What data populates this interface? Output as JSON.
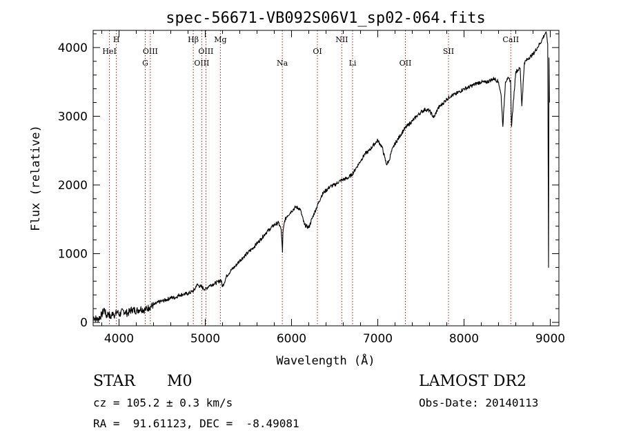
{
  "chart_data": {
    "type": "line",
    "title": "spec-56671-VB092S06V1_sp02-064.fits",
    "xlabel": "Wavelength (Å)",
    "ylabel": "Flux (relative)",
    "xlim": [
      3700,
      9100
    ],
    "ylim": [
      -50,
      4250
    ],
    "x_ticks": [
      4000,
      5000,
      6000,
      7000,
      8000,
      9000
    ],
    "y_ticks": [
      0,
      1000,
      2000,
      3000,
      4000
    ],
    "grid": false,
    "series": [
      {
        "x": [
          3700,
          3750,
          3800,
          3830,
          3850,
          3880,
          3900,
          3930,
          3950,
          3980,
          4000,
          4050,
          4100,
          4150,
          4200,
          4250,
          4300,
          4350,
          4400,
          4450,
          4500,
          4550,
          4600,
          4650,
          4700,
          4750,
          4800,
          4850,
          4880,
          4900,
          4950,
          5000,
          5050,
          5100,
          5150,
          5180,
          5200,
          5250,
          5300,
          5350,
          5400,
          5450,
          5500,
          5550,
          5600,
          5650,
          5700,
          5750,
          5800,
          5850,
          5880,
          5895,
          5900,
          5920,
          5950,
          6000,
          6050,
          6100,
          6150,
          6200,
          6250,
          6300,
          6350,
          6380,
          6400,
          6450,
          6500,
          6550,
          6600,
          6650,
          6700,
          6750,
          6800,
          6850,
          6900,
          6950,
          7000,
          7050,
          7080,
          7100,
          7130,
          7150,
          7180,
          7200,
          7250,
          7300,
          7350,
          7400,
          7450,
          7500,
          7550,
          7600,
          7650,
          7700,
          7750,
          7800,
          7850,
          7900,
          7950,
          8000,
          8050,
          8100,
          8150,
          8200,
          8250,
          8300,
          8350,
          8400,
          8430,
          8450,
          8480,
          8500,
          8540,
          8550,
          8600,
          8650,
          8660,
          8670,
          8700,
          8750,
          8800,
          8850,
          8900,
          8930,
          8950,
          8970,
          8980,
          8985,
          8990
        ],
        "values": [
          80,
          40,
          110,
          200,
          90,
          140,
          60,
          150,
          100,
          160,
          110,
          170,
          130,
          190,
          170,
          200,
          180,
          220,
          250,
          290,
          310,
          330,
          360,
          360,
          400,
          410,
          420,
          450,
          480,
          550,
          520,
          480,
          540,
          560,
          590,
          620,
          520,
          680,
          760,
          820,
          900,
          960,
          1020,
          1080,
          1150,
          1220,
          1300,
          1360,
          1420,
          1450,
          1350,
          1020,
          1300,
          1480,
          1550,
          1620,
          1680,
          1650,
          1420,
          1380,
          1550,
          1700,
          1850,
          1900,
          1920,
          1980,
          2000,
          2050,
          2080,
          2100,
          2150,
          2250,
          2350,
          2450,
          2500,
          2580,
          2650,
          2550,
          2400,
          2300,
          2350,
          2450,
          2550,
          2600,
          2700,
          2800,
          2870,
          2930,
          3000,
          3060,
          3100,
          3080,
          2980,
          3120,
          3180,
          3250,
          3300,
          3320,
          3360,
          3400,
          3420,
          3450,
          3480,
          3500,
          3490,
          3520,
          3550,
          3500,
          3300,
          2850,
          3500,
          3550,
          3520,
          2850,
          3650,
          3700,
          3450,
          3150,
          3780,
          3850,
          3900,
          4000,
          4100,
          4180,
          4230,
          4050,
          800,
          3850,
          3200
        ]
      }
    ],
    "annotations": [
      {
        "label": "HeI",
        "x": 3889
      },
      {
        "label": "H",
        "x": 3969
      },
      {
        "label": "OIII",
        "x": 4363
      },
      {
        "label": "G",
        "x": 4304
      },
      {
        "label": "Hβ",
        "x": 4861
      },
      {
        "label": "OIII",
        "x": 4959
      },
      {
        "label": "OIII",
        "x": 5007
      },
      {
        "label": "Mg",
        "x": 5175
      },
      {
        "label": "Na",
        "x": 5893
      },
      {
        "label": "OI",
        "x": 6300
      },
      {
        "label": "NII",
        "x": 6583
      },
      {
        "label": "Li",
        "x": 6708
      },
      {
        "label": "OII",
        "x": 7320
      },
      {
        "label": "SII",
        "x": 7820
      },
      {
        "label": "CaII",
        "x": 8542
      }
    ],
    "line_color": "#000000",
    "marker_color": "#8b0000"
  },
  "info": {
    "object_class": "STAR",
    "subclass": "M0",
    "survey": "LAMOST DR2",
    "cz": "cz = 105.2 ± 0.3 km/s",
    "obs_date": "Obs-Date: 20140113",
    "radec": "RA =  91.61123, DEC =  -8.49081"
  }
}
